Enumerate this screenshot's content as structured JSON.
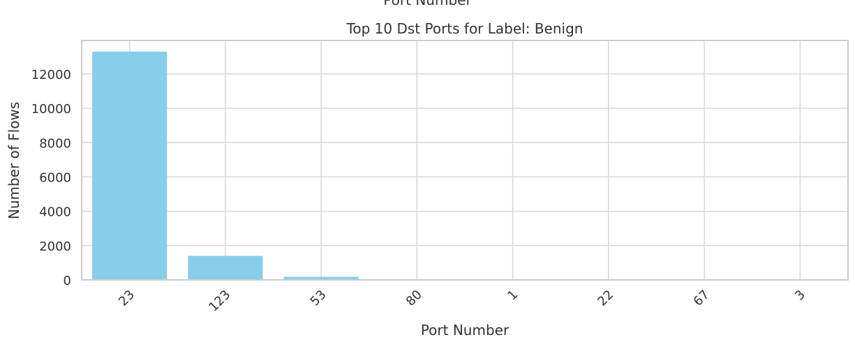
{
  "cropped_top_label": "Port Number",
  "chart_data": {
    "type": "bar",
    "title": "Top 10 Dst Ports for Label: Benign",
    "xlabel": "Port Number",
    "ylabel": "Number of Flows",
    "categories": [
      "23",
      "123",
      "53",
      "80",
      "1",
      "22",
      "67",
      "3"
    ],
    "values": [
      13300,
      1400,
      180,
      15,
      5,
      4,
      2,
      1
    ],
    "ylim": [
      0,
      13950
    ],
    "yticks": [
      0,
      2000,
      4000,
      6000,
      8000,
      10000,
      12000
    ],
    "ytick_labels": [
      "0",
      "2000",
      "4000",
      "6000",
      "8000",
      "10000",
      "12000"
    ],
    "grid": true,
    "bar_color": "#87ceeb",
    "grid_color": "#d9d9d9",
    "spine_color": "#cccccc"
  }
}
